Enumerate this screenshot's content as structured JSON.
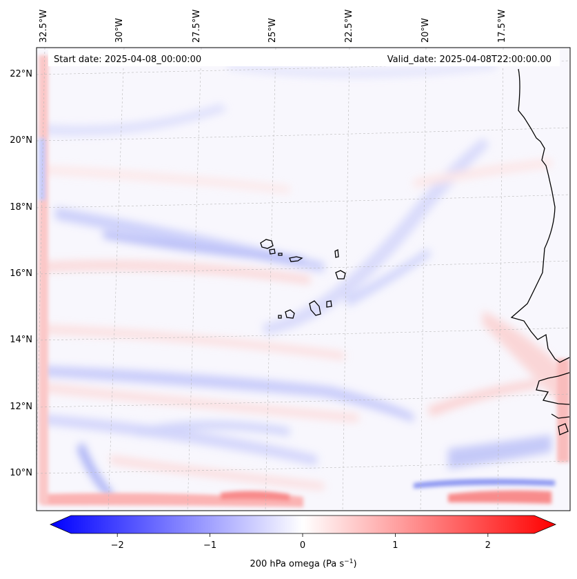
{
  "map": {
    "start_date": "Start date: 2025-04-08_00:00:00",
    "valid_date": "Valid_date: 2025-04-08T22:00:00.00",
    "longitude_labels": [
      "32.5°W",
      "30°W",
      "27.5°W",
      "25°W",
      "22.5°W",
      "20°W",
      "17.5°W"
    ],
    "latitude_labels": [
      "22°N",
      "20°N",
      "18°N",
      "16°N",
      "14°N",
      "12°N",
      "10°N"
    ]
  },
  "colorbar": {
    "ticks": [
      "−2",
      "−1",
      "0",
      "1",
      "2"
    ],
    "tick_values": [
      -2,
      -1,
      0,
      1,
      2
    ],
    "range": [
      -2.5,
      2.5
    ],
    "label_prefix": "200 hPa omega (Pa s",
    "label_exponent": "−1",
    "label_suffix": ")",
    "colors": {
      "negative": "#0000ff",
      "zero": "#ffffff",
      "positive": "#ff0000"
    }
  }
}
